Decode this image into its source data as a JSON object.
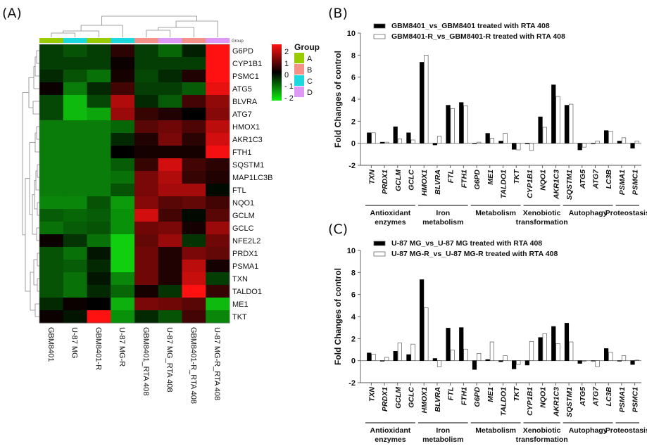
{
  "panels": {
    "A": "(A)",
    "B": "(B)",
    "C": "(C)"
  },
  "chart_data": [
    {
      "type": "heatmap",
      "panel": "(A)",
      "columns": [
        "GBM8401",
        "U-87 MG",
        "GBM8401-R",
        "U-87 MG-R",
        "GBM8401_RTA 408",
        "U-87 MG_RTA 408",
        "GBM8401-R_RTA 408",
        "U-87 MG-R_RTA 408"
      ],
      "column_groups": [
        "A",
        "C",
        "A",
        "C",
        "B",
        "D",
        "B",
        "D"
      ],
      "group_annotation_label": "Group",
      "rows": [
        "G6PD",
        "CYP1B1",
        "PSMC1",
        "ATG5",
        "BLVRA",
        "ATG7",
        "HMOX1",
        "AKR1C3",
        "FTH1",
        "SQSTM1",
        "MAP1LC3B",
        "FTL",
        "NQO1",
        "GCLM",
        "GCLC",
        "NFE2L2",
        "PRDX1",
        "PSMA1",
        "TXN",
        "TALDO1",
        "ME1",
        "TKT"
      ],
      "values": [
        [
          -0.6,
          -0.8,
          -0.6,
          0.4,
          -0.6,
          -1.0,
          -0.3,
          2.4
        ],
        [
          -0.6,
          -0.6,
          -0.6,
          0.1,
          -0.6,
          -0.6,
          -0.6,
          2.4
        ],
        [
          -0.4,
          -0.8,
          -1.1,
          0.2,
          -0.7,
          -0.4,
          0.3,
          2.3
        ],
        [
          0.1,
          -1.2,
          -0.4,
          0.6,
          -0.6,
          -0.6,
          -0.9,
          2.1
        ],
        [
          -0.7,
          -1.8,
          -0.7,
          1.6,
          -0.4,
          -0.9,
          0.6,
          1.3
        ],
        [
          -0.7,
          -1.8,
          -1.6,
          1.4,
          0.5,
          0.3,
          0.0,
          1.2
        ],
        [
          -1.2,
          -1.2,
          -1.2,
          -1.0,
          0.8,
          1.0,
          0.7,
          1.7
        ],
        [
          -1.2,
          -1.2,
          -1.2,
          -0.4,
          0.3,
          1.1,
          0.4,
          1.9
        ],
        [
          -1.2,
          -1.2,
          -1.2,
          0.0,
          0.2,
          0.2,
          0.2,
          2.2
        ],
        [
          -1.2,
          -1.2,
          -1.2,
          -0.9,
          0.5,
          1.9,
          0.6,
          0.4
        ],
        [
          -1.2,
          -1.2,
          -1.2,
          -1.1,
          1.1,
          1.6,
          0.5,
          0.3
        ],
        [
          -1.2,
          -1.2,
          -1.2,
          -0.8,
          1.1,
          1.5,
          1.5,
          -0.1
        ],
        [
          -1.3,
          -1.3,
          -0.8,
          -1.5,
          1.2,
          0.8,
          0.9,
          0.6
        ],
        [
          -0.9,
          -1.0,
          -0.9,
          -1.4,
          1.9,
          0.6,
          -0.1,
          0.8
        ],
        [
          -1.1,
          -0.9,
          -0.8,
          -1.4,
          1.0,
          1.1,
          0.2,
          1.4
        ],
        [
          0.1,
          -0.5,
          -1.1,
          -2.0,
          0.9,
          1.4,
          -0.5,
          1.0
        ],
        [
          -0.8,
          -1.1,
          -0.2,
          -2.0,
          1.0,
          0.3,
          1.1,
          0.9
        ],
        [
          -0.8,
          -0.9,
          -0.4,
          -2.0,
          1.0,
          0.3,
          1.7,
          0.2
        ],
        [
          -0.8,
          -1.1,
          -0.2,
          -1.3,
          1.0,
          0.3,
          1.8,
          -0.6
        ],
        [
          -0.8,
          -1.1,
          -0.4,
          -1.0,
          0.2,
          -0.5,
          2.4,
          0.5
        ],
        [
          -0.4,
          0.1,
          0.0,
          -1.7,
          1.1,
          1.0,
          0.8,
          -1.8
        ],
        [
          0.1,
          -0.2,
          2.3,
          -1.4,
          -0.4,
          -0.8,
          0.6,
          -1.3
        ]
      ],
      "colorbar": {
        "min": -2.3,
        "max": 2.3,
        "ticks": [
          "2",
          "1",
          "0",
          "- 1",
          "- 2"
        ],
        "low_color": "#11ee11",
        "mid_color": "#000000",
        "high_color": "#ff1111"
      },
      "legend": {
        "title": "Group",
        "entries": [
          {
            "label": "A",
            "color": "#99cc00"
          },
          {
            "label": "B",
            "color": "#f49189"
          },
          {
            "label": "C",
            "color": "#1cd9dd"
          },
          {
            "label": "D",
            "color": "#dd99f4"
          }
        ]
      }
    },
    {
      "type": "bar",
      "panel": "(B)",
      "ylabel": "Fold Changes of control",
      "ylim": [
        -2,
        10
      ],
      "yticks": [
        "-2",
        "0",
        "2",
        "4",
        "6",
        "8",
        "10"
      ],
      "categories": [
        "TXN",
        "PRDX1",
        "GCLM",
        "GCLC",
        "HMOX1",
        "BLVRA",
        "FTL",
        "FTH1",
        "G6PD",
        "ME1",
        "TALDO1",
        "TKT",
        "CYP1B1",
        "NQO1",
        "AKR1C3",
        "SQSTM1",
        "ATG5",
        "ATG7",
        "LC3B",
        "PSMA1",
        "PSMC1"
      ],
      "series": [
        {
          "name": "GBM8401_vs_GBM8401 treated with RTA 408",
          "fill": "#000000",
          "values": [
            0.95,
            0.1,
            1.5,
            0.95,
            7.35,
            -0.15,
            3.45,
            3.7,
            0.0,
            0.9,
            0.2,
            -0.55,
            -0.05,
            2.4,
            5.3,
            3.45,
            -0.6,
            0.0,
            1.15,
            0.2,
            -0.45
          ]
        },
        {
          "name": "GBM8401-R_vs_GBM8401-R treated with RTA 408",
          "fill": "#ffffff",
          "values": [
            0.95,
            0.1,
            0.4,
            0.3,
            8.0,
            0.65,
            3.15,
            3.4,
            0.1,
            0.45,
            0.9,
            -0.6,
            -0.65,
            1.45,
            4.25,
            3.55,
            -0.35,
            0.2,
            1.1,
            0.5,
            0.2
          ]
        }
      ],
      "groups": [
        {
          "label": [
            "Antioxidant",
            "enzymes"
          ],
          "from": 0,
          "to": 3
        },
        {
          "label": [
            "Iron",
            "metabolism"
          ],
          "from": 4,
          "to": 7
        },
        {
          "label": [
            "Metabolism"
          ],
          "from": 8,
          "to": 11
        },
        {
          "label": [
            "Xenobiotic",
            "transformation"
          ],
          "from": 12,
          "to": 14
        },
        {
          "label": [
            "Autophagy"
          ],
          "from": 15,
          "to": 18
        },
        {
          "label": [
            "Proteostasis"
          ],
          "from": 19,
          "to": 20
        }
      ]
    },
    {
      "type": "bar",
      "panel": "(C)",
      "ylabel": "Fold Changes of control",
      "ylim": [
        -2,
        10
      ],
      "yticks": [
        "-2",
        "0",
        "2",
        "4",
        "6",
        "8",
        "10"
      ],
      "categories": [
        "TXN",
        "PRDX1",
        "GCLM",
        "GCLC",
        "HMOX1",
        "BLVRA",
        "FTL",
        "FTH1",
        "G6PD",
        "ME1",
        "TALDO1",
        "TKT",
        "CYP1B1",
        "NQO1",
        "AKR1C3",
        "SQSTM1",
        "ATG5",
        "ATG7",
        "LC3B",
        "PSMA1",
        "PSMC1"
      ],
      "series": [
        {
          "name": "U-87 MG_vs_U-87 MG treated with RTA 408",
          "fill": "#000000",
          "values": [
            0.7,
            -0.05,
            0.85,
            0.55,
            7.35,
            0.2,
            2.95,
            3.0,
            -0.8,
            0.1,
            -0.1,
            -0.75,
            -0.4,
            2.1,
            3.1,
            3.4,
            -0.25,
            0.0,
            1.1,
            -0.05,
            -0.35
          ]
        },
        {
          "name": "U-87 MG-R_vs_U-87 MG-R treated with RTA 408",
          "fill": "#ffffff",
          "values": [
            0.6,
            0.3,
            1.6,
            1.5,
            4.8,
            -0.55,
            0.95,
            1.05,
            0.65,
            1.7,
            0.45,
            -0.35,
            1.75,
            2.45,
            1.55,
            1.7,
            -0.05,
            -0.55,
            0.75,
            0.45,
            0.05
          ]
        }
      ],
      "groups": [
        {
          "label": [
            "Antioxidant",
            "enzymes"
          ],
          "from": 0,
          "to": 3
        },
        {
          "label": [
            "Iron",
            "metabolism"
          ],
          "from": 4,
          "to": 7
        },
        {
          "label": [
            "Metabolism"
          ],
          "from": 8,
          "to": 11
        },
        {
          "label": [
            "Xenobiotic",
            "transformation"
          ],
          "from": 12,
          "to": 14
        },
        {
          "label": [
            "Autophagy"
          ],
          "from": 15,
          "to": 18
        },
        {
          "label": [
            "Proteostasis"
          ],
          "from": 19,
          "to": 20
        }
      ]
    }
  ]
}
